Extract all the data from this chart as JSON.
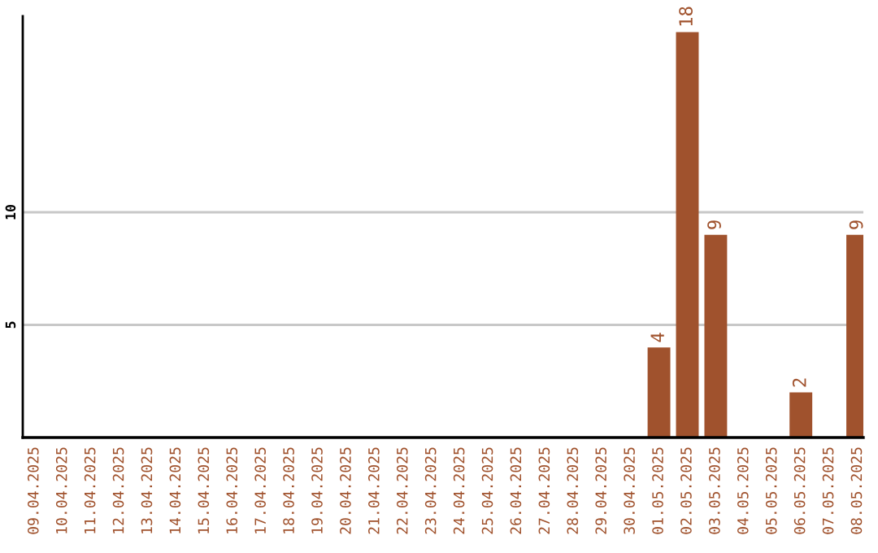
{
  "chart_data": {
    "type": "bar",
    "categories": [
      "09.04.2025",
      "10.04.2025",
      "11.04.2025",
      "12.04.2025",
      "13.04.2025",
      "14.04.2025",
      "15.04.2025",
      "16.04.2025",
      "17.04.2025",
      "18.04.2025",
      "19.04.2025",
      "20.04.2025",
      "21.04.2025",
      "22.04.2025",
      "23.04.2025",
      "24.04.2025",
      "25.04.2025",
      "26.04.2025",
      "27.04.2025",
      "28.04.2025",
      "29.04.2025",
      "30.04.2025",
      "01.05.2025",
      "02.05.2025",
      "03.05.2025",
      "04.05.2025",
      "05.05.2025",
      "06.05.2025",
      "07.05.2025",
      "08.05.2025"
    ],
    "values": [
      0,
      0,
      0,
      0,
      0,
      0,
      0,
      0,
      0,
      0,
      0,
      0,
      0,
      0,
      0,
      0,
      0,
      0,
      0,
      0,
      0,
      0,
      4,
      18,
      9,
      0,
      0,
      2,
      0,
      9
    ],
    "value_labels": [
      null,
      null,
      null,
      null,
      null,
      null,
      null,
      null,
      null,
      null,
      null,
      null,
      null,
      null,
      null,
      null,
      null,
      null,
      null,
      null,
      null,
      null,
      "4",
      "18",
      "9",
      null,
      null,
      "2",
      null,
      "9"
    ],
    "color": "#a0522d",
    "ylim": [
      0,
      18.7
    ],
    "yticks": [
      5,
      10
    ],
    "grid": "y"
  }
}
